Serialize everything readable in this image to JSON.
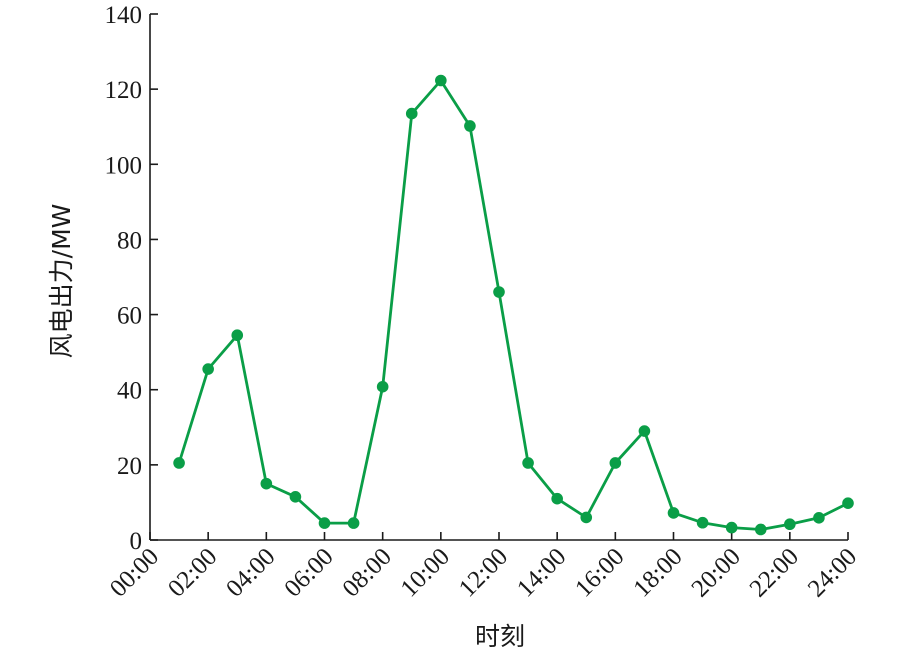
{
  "chart_data": {
    "type": "line",
    "title": "",
    "xlabel": "时刻",
    "ylabel": "风电出力/MW",
    "xlim": [
      0,
      24
    ],
    "ylim": [
      0,
      140
    ],
    "x_ticks": [
      {
        "value": 0,
        "label": "00:00"
      },
      {
        "value": 2,
        "label": "02:00"
      },
      {
        "value": 4,
        "label": "04:00"
      },
      {
        "value": 6,
        "label": "06:00"
      },
      {
        "value": 8,
        "label": "08:00"
      },
      {
        "value": 10,
        "label": "10:00"
      },
      {
        "value": 12,
        "label": "12:00"
      },
      {
        "value": 14,
        "label": "14:00"
      },
      {
        "value": 16,
        "label": "16:00"
      },
      {
        "value": 18,
        "label": "18:00"
      },
      {
        "value": 20,
        "label": "20:00"
      },
      {
        "value": 22,
        "label": "22:00"
      },
      {
        "value": 24,
        "label": "24:00"
      }
    ],
    "y_ticks": [
      0,
      20,
      40,
      60,
      80,
      100,
      120,
      140
    ],
    "grid": false,
    "legend": "none",
    "series": [
      {
        "color": "#0a9e47",
        "x": [
          1,
          2,
          3,
          4,
          5,
          6,
          7,
          8,
          9,
          10,
          11,
          12,
          13,
          14,
          15,
          16,
          17,
          18,
          19,
          20,
          21,
          22,
          23,
          24
        ],
        "values": [
          20.5,
          45.5,
          54.5,
          15,
          11.5,
          4.5,
          4.5,
          40.8,
          113.5,
          122.3,
          110.2,
          66,
          20.5,
          11,
          6,
          20.5,
          29,
          7.2,
          4.6,
          3.3,
          2.8,
          4.2,
          5.9,
          9.8
        ]
      }
    ]
  }
}
